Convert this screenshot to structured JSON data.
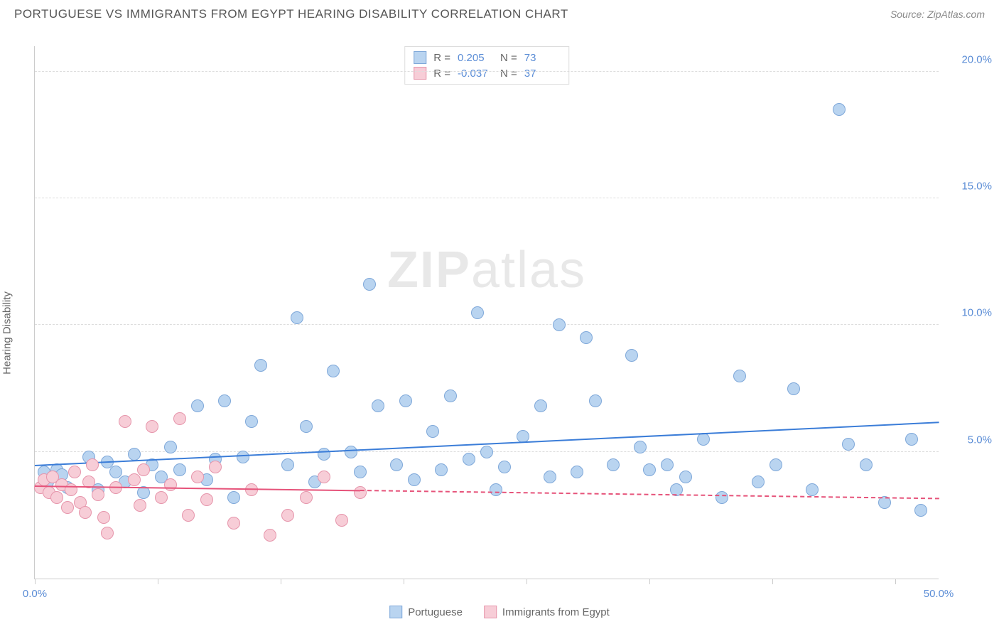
{
  "title": "PORTUGUESE VS IMMIGRANTS FROM EGYPT HEARING DISABILITY CORRELATION CHART",
  "source": "Source: ZipAtlas.com",
  "ylabel": "Hearing Disability",
  "watermark_zip": "ZIP",
  "watermark_atlas": "atlas",
  "chart": {
    "type": "scatter",
    "xlim": [
      0,
      50
    ],
    "ylim": [
      0,
      21
    ],
    "yticks": [
      {
        "v": 5,
        "label": "5.0%"
      },
      {
        "v": 10,
        "label": "10.0%"
      },
      {
        "v": 15,
        "label": "15.0%"
      },
      {
        "v": 20,
        "label": "20.0%"
      }
    ],
    "xticks": [
      0,
      6.8,
      13.6,
      20.4,
      27.2,
      34.0,
      40.8,
      47.6
    ],
    "xlabels": [
      {
        "v": 0,
        "label": "0.0%"
      },
      {
        "v": 50,
        "label": "50.0%"
      }
    ],
    "grid_color": "#dddddd",
    "background_color": "#ffffff",
    "marker_radius": 9,
    "marker_border_width": 1.5,
    "series": [
      {
        "name": "Portuguese",
        "fill": "#b9d4f0",
        "stroke": "#7fa8d9",
        "line_color": "#3b7dd8",
        "R": "0.205",
        "N": "73",
        "trend": {
          "x1": 0,
          "y1": 4.5,
          "x2_solid": 50,
          "y2": 6.2,
          "x2_dash": 50
        },
        "points": [
          [
            0.5,
            4.2
          ],
          [
            0.7,
            3.8
          ],
          [
            1.0,
            4.0
          ],
          [
            1.2,
            4.3
          ],
          [
            1.5,
            4.1
          ],
          [
            1.8,
            3.6
          ],
          [
            3.0,
            4.8
          ],
          [
            3.5,
            3.5
          ],
          [
            4.0,
            4.6
          ],
          [
            4.5,
            4.2
          ],
          [
            5.0,
            3.8
          ],
          [
            5.5,
            4.9
          ],
          [
            6.0,
            3.4
          ],
          [
            6.5,
            4.5
          ],
          [
            7.0,
            4.0
          ],
          [
            7.5,
            5.2
          ],
          [
            8.0,
            4.3
          ],
          [
            9.0,
            6.8
          ],
          [
            9.5,
            3.9
          ],
          [
            10.0,
            4.7
          ],
          [
            10.5,
            7.0
          ],
          [
            11.0,
            3.2
          ],
          [
            11.5,
            4.8
          ],
          [
            12.0,
            6.2
          ],
          [
            12.5,
            8.4
          ],
          [
            14.0,
            4.5
          ],
          [
            14.5,
            10.3
          ],
          [
            15.0,
            6.0
          ],
          [
            15.5,
            3.8
          ],
          [
            16.0,
            4.9
          ],
          [
            16.5,
            8.2
          ],
          [
            17.5,
            5.0
          ],
          [
            18.0,
            4.2
          ],
          [
            18.5,
            11.6
          ],
          [
            19.0,
            6.8
          ],
          [
            20.0,
            4.5
          ],
          [
            20.5,
            7.0
          ],
          [
            21.0,
            3.9
          ],
          [
            22.0,
            5.8
          ],
          [
            22.5,
            4.3
          ],
          [
            23.0,
            7.2
          ],
          [
            24.0,
            4.7
          ],
          [
            24.5,
            10.5
          ],
          [
            25.0,
            5.0
          ],
          [
            25.5,
            3.5
          ],
          [
            26.0,
            4.4
          ],
          [
            27.0,
            5.6
          ],
          [
            28.0,
            6.8
          ],
          [
            28.5,
            4.0
          ],
          [
            29.0,
            10.0
          ],
          [
            30.0,
            4.2
          ],
          [
            30.5,
            9.5
          ],
          [
            31.0,
            7.0
          ],
          [
            32.0,
            4.5
          ],
          [
            33.0,
            8.8
          ],
          [
            33.5,
            5.2
          ],
          [
            34.0,
            4.3
          ],
          [
            35.0,
            4.5
          ],
          [
            35.5,
            3.5
          ],
          [
            36.0,
            4.0
          ],
          [
            37.0,
            5.5
          ],
          [
            38.0,
            3.2
          ],
          [
            39.0,
            8.0
          ],
          [
            40.0,
            3.8
          ],
          [
            41.0,
            4.5
          ],
          [
            42.0,
            7.5
          ],
          [
            43.0,
            3.5
          ],
          [
            44.5,
            18.5
          ],
          [
            45.0,
            5.3
          ],
          [
            46.0,
            4.5
          ],
          [
            47.0,
            3.0
          ],
          [
            48.5,
            5.5
          ],
          [
            49.0,
            2.7
          ]
        ]
      },
      {
        "name": "Immigrants from Egypt",
        "fill": "#f7cdd7",
        "stroke": "#e695ab",
        "line_color": "#e6537a",
        "R": "-0.037",
        "N": "37",
        "trend": {
          "x1": 0,
          "y1": 3.7,
          "x2_solid": 18,
          "y2": 3.2,
          "x2_dash": 50
        },
        "points": [
          [
            0.3,
            3.6
          ],
          [
            0.5,
            3.9
          ],
          [
            0.8,
            3.4
          ],
          [
            1.0,
            4.0
          ],
          [
            1.2,
            3.2
          ],
          [
            1.5,
            3.7
          ],
          [
            1.8,
            2.8
          ],
          [
            2.0,
            3.5
          ],
          [
            2.2,
            4.2
          ],
          [
            2.5,
            3.0
          ],
          [
            2.8,
            2.6
          ],
          [
            3.0,
            3.8
          ],
          [
            3.2,
            4.5
          ],
          [
            3.5,
            3.3
          ],
          [
            3.8,
            2.4
          ],
          [
            4.0,
            1.8
          ],
          [
            4.5,
            3.6
          ],
          [
            5.0,
            6.2
          ],
          [
            5.5,
            3.9
          ],
          [
            5.8,
            2.9
          ],
          [
            6.0,
            4.3
          ],
          [
            6.5,
            6.0
          ],
          [
            7.0,
            3.2
          ],
          [
            7.5,
            3.7
          ],
          [
            8.0,
            6.3
          ],
          [
            8.5,
            2.5
          ],
          [
            9.0,
            4.0
          ],
          [
            9.5,
            3.1
          ],
          [
            10.0,
            4.4
          ],
          [
            11.0,
            2.2
          ],
          [
            12.0,
            3.5
          ],
          [
            13.0,
            1.7
          ],
          [
            14.0,
            2.5
          ],
          [
            15.0,
            3.2
          ],
          [
            16.0,
            4.0
          ],
          [
            17.0,
            2.3
          ],
          [
            18.0,
            3.4
          ]
        ]
      }
    ]
  },
  "legend": {
    "series1_label": "Portuguese",
    "series2_label": "Immigrants from Egypt"
  },
  "stats_labels": {
    "R": "R =",
    "N": "N ="
  }
}
